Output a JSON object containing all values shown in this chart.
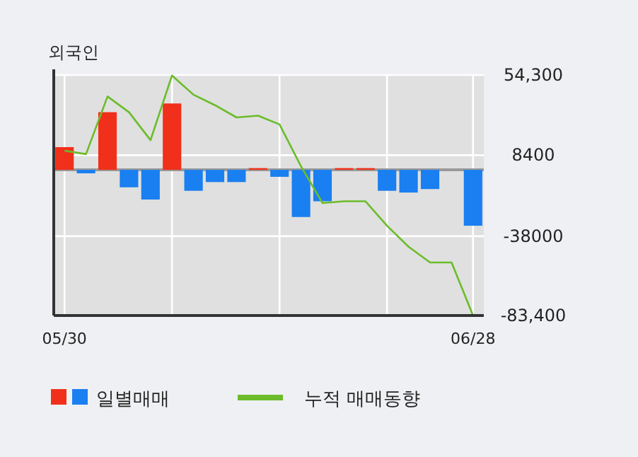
{
  "chart_data": {
    "type": "bar",
    "title": "외국인",
    "categories": [
      "05/30",
      null,
      null,
      null,
      null,
      null,
      null,
      null,
      null,
      null,
      null,
      null,
      null,
      null,
      null,
      null,
      null,
      null,
      null,
      "06/28"
    ],
    "series": [
      {
        "name": "일별매매",
        "colors": [
          "#f0301a",
          "#1a7ff0",
          "#f0301a",
          "#1a7ff0",
          "#1a7ff0",
          "#f0301a",
          "#1a7ff0",
          "#1a7ff0",
          "#1a7ff0",
          "#f0301a",
          "#1a7ff0",
          "#1a7ff0",
          "#1a7ff0",
          "#f0301a",
          "#f0301a",
          "#1a7ff0",
          "#1a7ff0",
          "#1a7ff0",
          null,
          "#1a7ff0"
        ],
        "values": [
          13000,
          -2000,
          33000,
          -10000,
          -17000,
          38000,
          -12000,
          -7000,
          -7000,
          1000,
          -4000,
          -27000,
          -18000,
          1000,
          1000,
          -12000,
          -13000,
          -11000,
          null,
          -32000
        ]
      },
      {
        "name": "누적 매매동향",
        "type": "line",
        "color": "#6cbc2a",
        "values": [
          11000,
          9000,
          42000,
          33000,
          17000,
          54000,
          43000,
          37000,
          30000,
          31000,
          26000,
          2000,
          -19000,
          -18000,
          -18000,
          -32000,
          -44000,
          -53000,
          -53000,
          -83400
        ]
      }
    ],
    "ylim": [
      -83400,
      54300
    ],
    "yticks": [
      {
        "value": 54300,
        "label": "54,300"
      },
      8400,
      {
        "value": -38000,
        "label": "-38000"
      },
      {
        "value": -83400,
        "label": "-83,400"
      }
    ],
    "grid": true,
    "legend": "bottom"
  }
}
